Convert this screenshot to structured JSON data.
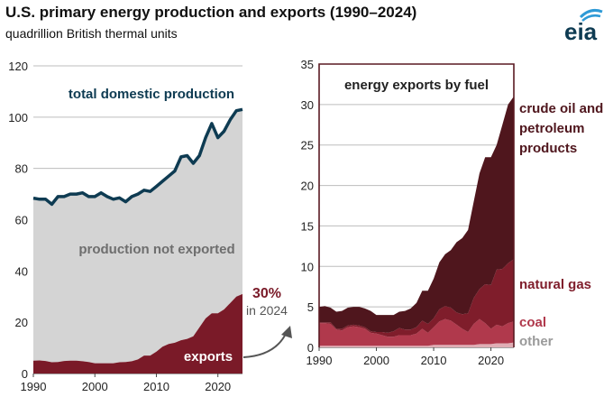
{
  "header": {
    "title": "U.S. primary energy production and exports (1990–2024)",
    "subtitle": "quadrillion British thermal units",
    "logo_text": "eia"
  },
  "chart_data": [
    {
      "type": "area",
      "title": "U.S. primary energy production and exports",
      "ylim": [
        0,
        120
      ],
      "yticks": [
        0,
        20,
        40,
        60,
        80,
        100,
        120
      ],
      "xlim": [
        1990,
        2024
      ],
      "xticks": [
        1990,
        2000,
        2010,
        2020
      ],
      "x": [
        1990,
        1991,
        1992,
        1993,
        1994,
        1995,
        1996,
        1997,
        1998,
        1999,
        2000,
        2001,
        2002,
        2003,
        2004,
        2005,
        2006,
        2007,
        2008,
        2009,
        2010,
        2011,
        2012,
        2013,
        2014,
        2015,
        2016,
        2017,
        2018,
        2019,
        2020,
        2021,
        2022,
        2023,
        2024
      ],
      "series": [
        {
          "name": "total domestic production",
          "values": [
            68.4,
            68.0,
            68.0,
            66.0,
            69.0,
            69.0,
            70.0,
            70.0,
            70.5,
            69.0,
            69.0,
            70.5,
            69.0,
            68.0,
            68.5,
            67.0,
            69.0,
            70.0,
            71.5,
            71.0,
            73.0,
            75.0,
            77.0,
            79.0,
            84.5,
            85.0,
            82.0,
            85.0,
            92.0,
            97.5,
            92.0,
            94.5,
            99.0,
            102.5,
            103.0
          ]
        },
        {
          "name": "exports",
          "values": [
            5.0,
            5.1,
            4.9,
            4.4,
            4.5,
            4.9,
            5.0,
            5.0,
            4.8,
            4.5,
            4.0,
            4.0,
            4.0,
            4.0,
            4.4,
            4.5,
            4.8,
            5.5,
            7.0,
            7.0,
            8.5,
            10.5,
            11.5,
            12.0,
            13.0,
            13.5,
            14.5,
            18.0,
            21.5,
            23.5,
            23.5,
            25.0,
            27.5,
            30.0,
            31.0
          ]
        }
      ],
      "labels": {
        "production_line": "total domestic production",
        "not_exported": "production not exported",
        "exports": "exports",
        "share": "30%",
        "share_note": "in 2024"
      }
    },
    {
      "type": "area",
      "title": "energy exports by fuel",
      "stacked": true,
      "ylim": [
        0,
        35
      ],
      "yticks": [
        0,
        5,
        10,
        15,
        20,
        25,
        30,
        35
      ],
      "xlim": [
        1990,
        2024
      ],
      "xticks": [
        1990,
        2000,
        2010,
        2020
      ],
      "x": [
        1990,
        1991,
        1992,
        1993,
        1994,
        1995,
        1996,
        1997,
        1998,
        1999,
        2000,
        2001,
        2002,
        2003,
        2004,
        2005,
        2006,
        2007,
        2008,
        2009,
        2010,
        2011,
        2012,
        2013,
        2014,
        2015,
        2016,
        2017,
        2018,
        2019,
        2020,
        2021,
        2022,
        2023,
        2024
      ],
      "series": [
        {
          "name": "other",
          "values": [
            0.2,
            0.2,
            0.2,
            0.2,
            0.2,
            0.2,
            0.2,
            0.2,
            0.2,
            0.2,
            0.2,
            0.2,
            0.2,
            0.2,
            0.2,
            0.2,
            0.2,
            0.2,
            0.2,
            0.2,
            0.3,
            0.3,
            0.3,
            0.3,
            0.3,
            0.3,
            0.3,
            0.3,
            0.4,
            0.4,
            0.4,
            0.5,
            0.5,
            0.5,
            0.6
          ]
        },
        {
          "name": "coal",
          "values": [
            2.8,
            2.8,
            2.7,
            2.0,
            1.9,
            2.3,
            2.4,
            2.3,
            2.1,
            1.6,
            1.5,
            1.3,
            1.1,
            1.1,
            1.3,
            1.3,
            1.3,
            1.5,
            2.1,
            1.6,
            2.2,
            2.9,
            3.2,
            3.0,
            2.5,
            2.0,
            1.6,
            2.6,
            3.1,
            2.6,
            1.9,
            2.3,
            2.1,
            2.5,
            2.6
          ]
        },
        {
          "name": "natural gas",
          "values": [
            0.1,
            0.1,
            0.2,
            0.1,
            0.2,
            0.2,
            0.2,
            0.2,
            0.2,
            0.2,
            0.2,
            0.4,
            0.5,
            0.7,
            0.9,
            0.7,
            0.7,
            0.8,
            1.0,
            1.1,
            1.1,
            1.5,
            1.6,
            1.6,
            1.5,
            1.8,
            2.3,
            3.2,
            3.7,
            4.8,
            5.4,
            6.8,
            7.1,
            7.4,
            7.7
          ]
        },
        {
          "name": "crude oil and petroleum products",
          "values": [
            1.9,
            2.0,
            1.8,
            2.1,
            2.2,
            2.2,
            2.2,
            2.3,
            2.3,
            2.5,
            2.1,
            2.1,
            2.2,
            2.0,
            2.0,
            2.3,
            2.6,
            3.0,
            3.7,
            4.1,
            4.9,
            5.8,
            6.4,
            7.1,
            8.7,
            9.4,
            10.3,
            11.9,
            14.3,
            15.7,
            15.8,
            15.4,
            17.8,
            19.6,
            20.1
          ]
        }
      ]
    }
  ],
  "colors": {
    "production_line": "#0e3b52",
    "not_exported": "#d4d4d4",
    "exports": "#7a1a28",
    "crude": "#4f161d",
    "natgas": "#7f1d2b",
    "coal": "#b0394c",
    "other": "#e0aeb5",
    "other_text": "#9a9a9a",
    "panel_border": "#5a1a22",
    "arrow": "#555555",
    "grid": "#bdbdbd",
    "logo": "#0e3b52",
    "logo_accent": "#2e9ad6"
  }
}
